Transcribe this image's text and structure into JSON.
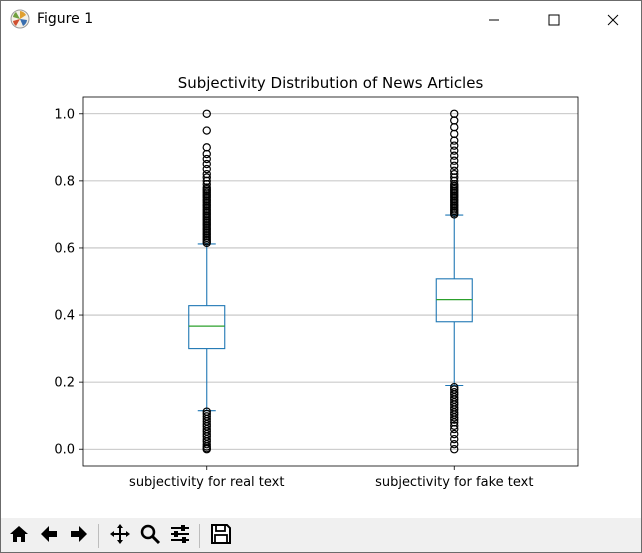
{
  "window": {
    "title": "Figure 1",
    "controls": {
      "minimize": "minimize",
      "maximize": "maximize",
      "close": "close"
    }
  },
  "toolbar": {
    "buttons": [
      "home-icon",
      "back-icon",
      "forward-icon",
      "pan-icon",
      "zoom-icon",
      "configure-subplots-icon",
      "save-icon"
    ]
  },
  "chart_data": {
    "type": "box",
    "title": "Subjectivity Distribution of News Articles",
    "xlabel": "",
    "ylabel": "",
    "categories": [
      "subjectivity for real text",
      "subjectivity for fake text"
    ],
    "ylim": [
      -0.05,
      1.05
    ],
    "yticks": [
      0.0,
      0.2,
      0.4,
      0.6,
      0.8,
      1.0
    ],
    "ytick_labels": [
      "0.0",
      "0.2",
      "0.4",
      "0.6",
      "0.8",
      "1.0"
    ],
    "grid": "horizontal",
    "boxes": [
      {
        "label": "subjectivity for real text",
        "whisker_low": 0.115,
        "q1": 0.3,
        "median": 0.367,
        "q3": 0.428,
        "whisker_high": 0.612,
        "outliers_high": [
          0.615,
          0.62,
          0.625,
          0.63,
          0.635,
          0.64,
          0.645,
          0.65,
          0.655,
          0.66,
          0.665,
          0.67,
          0.675,
          0.68,
          0.685,
          0.69,
          0.695,
          0.7,
          0.705,
          0.71,
          0.715,
          0.72,
          0.725,
          0.73,
          0.735,
          0.74,
          0.745,
          0.75,
          0.755,
          0.76,
          0.765,
          0.77,
          0.775,
          0.78,
          0.79,
          0.8,
          0.81,
          0.82,
          0.835,
          0.85,
          0.865,
          0.88,
          0.9,
          0.95,
          1.0
        ],
        "outliers_low": [
          0.112,
          0.105,
          0.098,
          0.09,
          0.083,
          0.075,
          0.068,
          0.06,
          0.053,
          0.045,
          0.038,
          0.03,
          0.023,
          0.015,
          0.008,
          0.003,
          0.0
        ]
      },
      {
        "label": "subjectivity for fake text",
        "whisker_low": 0.19,
        "q1": 0.38,
        "median": 0.446,
        "q3": 0.508,
        "whisker_high": 0.698,
        "outliers_high": [
          0.7,
          0.705,
          0.71,
          0.715,
          0.72,
          0.725,
          0.73,
          0.735,
          0.74,
          0.745,
          0.75,
          0.755,
          0.76,
          0.765,
          0.77,
          0.775,
          0.78,
          0.785,
          0.79,
          0.8,
          0.81,
          0.82,
          0.83,
          0.845,
          0.86,
          0.875,
          0.89,
          0.905,
          0.92,
          0.94,
          0.96,
          0.98,
          1.0
        ],
        "outliers_low": [
          0.185,
          0.178,
          0.17,
          0.163,
          0.155,
          0.148,
          0.14,
          0.133,
          0.125,
          0.118,
          0.11,
          0.103,
          0.095,
          0.088,
          0.08,
          0.07,
          0.06,
          0.045,
          0.03,
          0.015,
          0.0
        ]
      }
    ],
    "colors": {
      "box": "#1f77b4",
      "median": "#2ca02c",
      "outlier": "#000000",
      "grid": "#b0b0b0"
    }
  }
}
